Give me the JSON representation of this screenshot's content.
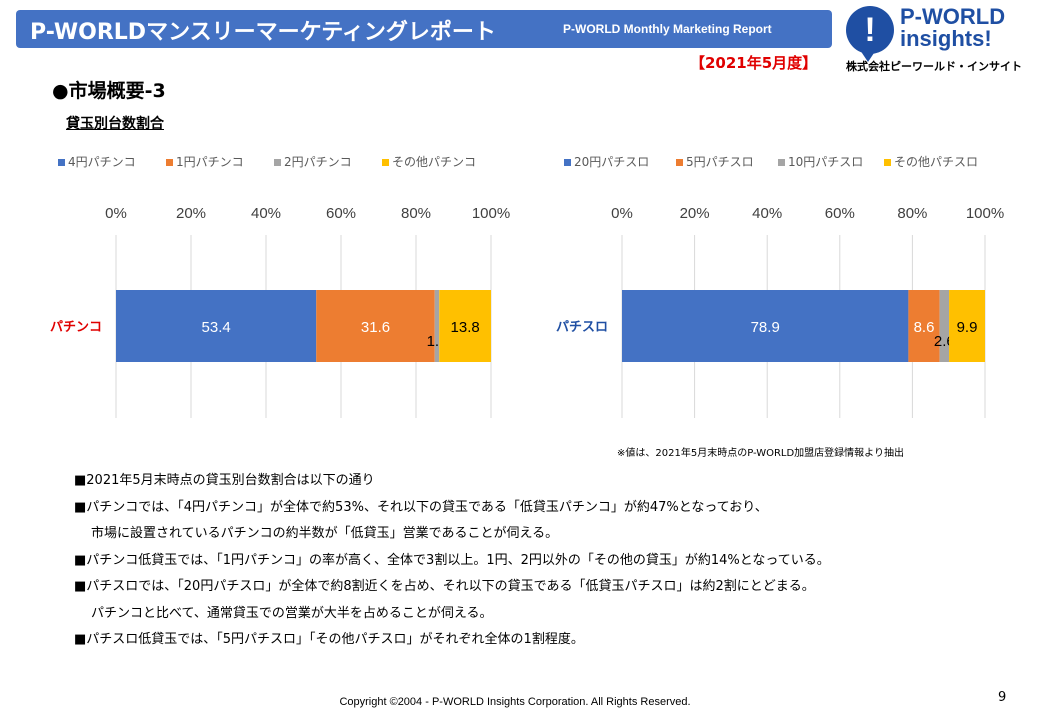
{
  "header": {
    "title": "P-WORLDマンスリーマーケティングレポート",
    "subtitle": "P-WORLD Monthly Marketing Report",
    "period": "【2021年5月度】"
  },
  "logo": {
    "mark": "!",
    "name": "P-WORLD",
    "insights": "insights!",
    "company": "株式会社ピーワールド・インサイト"
  },
  "section_title": "●市場概要-3",
  "chart_subtitle": "貸玉別台数割合",
  "colors": {
    "blue": "#4472c4",
    "orange": "#ed7d31",
    "gray": "#a5a5a5",
    "yellow": "#ffc000",
    "header": "#4472c4",
    "accent_red": "#e00000"
  },
  "chart_data": [
    {
      "type": "bar",
      "orientation": "horizontal-stacked-100",
      "categories": [
        "パチンコ"
      ],
      "series": [
        {
          "name": "4円パチンコ",
          "values": [
            53.4
          ],
          "label": "53.4",
          "color": "#4472c4"
        },
        {
          "name": "1円パチンコ",
          "values": [
            31.6
          ],
          "label": "31.6",
          "color": "#ed7d31"
        },
        {
          "name": "2円パチンコ",
          "values": [
            1.2
          ],
          "label": "1.2",
          "color": "#a5a5a5"
        },
        {
          "name": "その他パチンコ",
          "values": [
            13.8
          ],
          "label": "13.8",
          "color": "#ffc000"
        }
      ],
      "xticks": [
        "0%",
        "20%",
        "40%",
        "60%",
        "80%",
        "100%"
      ],
      "xlim": [
        0,
        100
      ],
      "grid": true,
      "legend": "top"
    },
    {
      "type": "bar",
      "orientation": "horizontal-stacked-100",
      "categories": [
        "パチスロ"
      ],
      "series": [
        {
          "name": "20円パチスロ",
          "values": [
            78.9
          ],
          "label": "78.9",
          "color": "#4472c4"
        },
        {
          "name": "5円パチスロ",
          "values": [
            8.6
          ],
          "label": "8.6",
          "color": "#ed7d31"
        },
        {
          "name": "10円パチスロ",
          "values": [
            2.6
          ],
          "label": "2.6",
          "color": "#a5a5a5"
        },
        {
          "name": "その他パチスロ",
          "values": [
            9.9
          ],
          "label": "9.9",
          "color": "#ffc000"
        }
      ],
      "xticks": [
        "0%",
        "20%",
        "40%",
        "60%",
        "80%",
        "100%"
      ],
      "xlim": [
        0,
        100
      ],
      "grid": true,
      "legend": "top"
    }
  ],
  "note": "※値は、2021年5月末時点のP-WORLD加盟店登録情報より抽出",
  "bullets": [
    "■2021年5月末時点の貸玉別台数割合は以下の通り",
    "■パチンコでは、「4円パチンコ」が全体で約53%、それ以下の貸玉である「低貸玉パチンコ」が約47%となっており、",
    "市場に設置されているパチンコの約半数が「低貸玉」営業であることが伺える。",
    "■パチンコ低貸玉では、「1円パチンコ」の率が高く、全体で3割以上。1円、2円以外の「その他の貸玉」が約14%となっている。",
    "■パチスロでは、「20円パチスロ」が全体で約8割近くを占め、それ以下の貸玉である「低貸玉パチスロ」は約2割にとどまる。",
    "パチンコと比べて、通常貸玉での営業が大半を占めることが伺える。",
    "■パチスロ低貸玉では、「5円パチスロ」「その他パチスロ」がそれぞれ全体の1割程度。"
  ],
  "footer": "Copyright ©2004 -  P-WORLD Insights Corporation. All Rights Reserved.",
  "page_number": "9"
}
